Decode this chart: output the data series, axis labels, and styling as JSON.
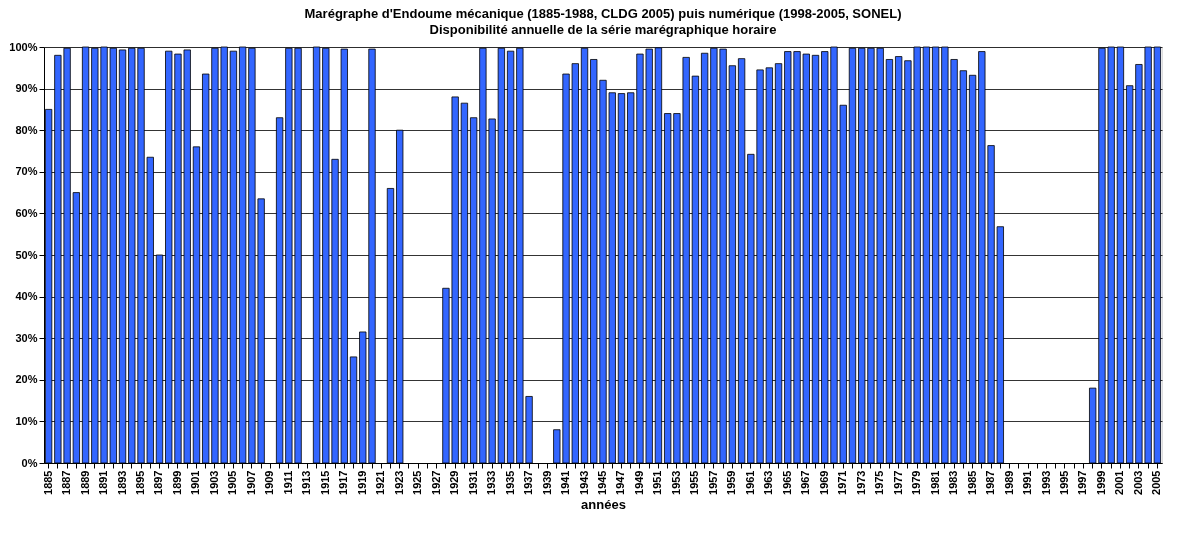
{
  "chart_data": {
    "type": "bar",
    "title": "Marégraphe d'Endoume mécanique (1885-1988, CLDG 2005) puis numérique (1998-2005, SONEL)",
    "subtitle": "Disponibilité annuelle de la série marégraphique horaire",
    "xlabel": "années",
    "categories": [
      "1885",
      null,
      "1887",
      null,
      "1889",
      null,
      "1891",
      null,
      "1893",
      null,
      "1895",
      null,
      "1897",
      null,
      "1899",
      null,
      "1901",
      null,
      "1903",
      null,
      "1905",
      null,
      "1907",
      null,
      "1909",
      null,
      "1911",
      null,
      "1913",
      null,
      "1915",
      null,
      "1917",
      null,
      "1919",
      null,
      "1921",
      null,
      "1923",
      null,
      "1925",
      null,
      "1927",
      null,
      "1929",
      null,
      "1931",
      null,
      "1933",
      null,
      "1935",
      null,
      "1937",
      null,
      "1939",
      null,
      "1941",
      null,
      "1943",
      null,
      "1945",
      null,
      "1947",
      null,
      "1949",
      null,
      "1951",
      null,
      "1953",
      null,
      "1955",
      null,
      "1957",
      null,
      "1959",
      null,
      "1961",
      null,
      "1963",
      null,
      "1965",
      null,
      "1967",
      null,
      "1969",
      null,
      "1971",
      null,
      "1973",
      null,
      "1975",
      null,
      "1977",
      null,
      "1979",
      null,
      "1981",
      null,
      "1983",
      null,
      "1985",
      null,
      "1987",
      null,
      "1989",
      null,
      "1991",
      null,
      "1993",
      null,
      "1995",
      null,
      "1997",
      null,
      "1999",
      null,
      "2001",
      null,
      "2003",
      null,
      "2005"
    ],
    "series": [
      {
        "color": "#3366ff",
        "values": [
          85,
          98,
          99.7,
          65,
          100,
          99.7,
          100,
          99.7,
          99.3,
          99.7,
          99.7,
          73.5,
          50,
          99,
          98.3,
          99.3,
          76,
          93.5,
          99.7,
          100,
          99,
          100,
          99.7,
          63.5,
          null,
          83,
          99.7,
          99.7,
          null,
          100,
          99.7,
          73,
          99.5,
          25.5,
          31.5,
          99.5,
          null,
          66,
          80,
          null,
          null,
          null,
          null,
          42,
          88,
          86.5,
          83,
          99.7,
          82.7,
          99.7,
          99,
          99.7,
          16,
          null,
          null,
          8,
          93.5,
          96,
          99.7,
          97,
          92,
          89,
          88.8,
          89,
          98.3,
          99.5,
          99.8,
          84,
          84,
          97.5,
          93,
          98.5,
          99.7,
          99.5,
          95.5,
          97.2,
          74.2,
          94.5,
          95,
          96,
          98.9,
          98.9,
          98.3,
          98,
          98.9,
          100,
          86,
          99.7,
          99.7,
          99.7,
          99.7,
          97,
          97.7,
          96.7,
          100,
          100,
          100,
          100,
          97,
          94.3,
          93.2,
          98.9,
          76.3,
          56.8,
          null,
          null,
          null,
          null,
          null,
          null,
          null,
          null,
          null,
          18,
          99.7,
          100,
          100,
          90.7,
          95.8,
          100,
          100
        ]
      }
    ],
    "ylim": [
      0,
      100
    ],
    "yticks": [
      {
        "value": 0,
        "label": "0%"
      },
      {
        "value": 10,
        "label": "10%"
      },
      {
        "value": 20,
        "label": "20%"
      },
      {
        "value": 30,
        "label": "30%"
      },
      {
        "value": 40,
        "label": "40%"
      },
      {
        "value": 50,
        "label": "50%"
      },
      {
        "value": 60,
        "label": "60%"
      },
      {
        "value": 70,
        "label": "70%"
      },
      {
        "value": 80,
        "label": "80%"
      },
      {
        "value": 90,
        "label": "90%"
      },
      {
        "value": 100,
        "label": "100%"
      }
    ],
    "grid": "y"
  }
}
